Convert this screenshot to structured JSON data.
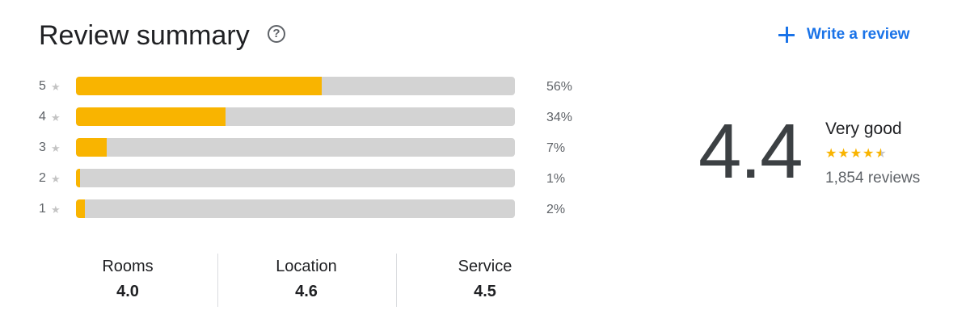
{
  "header": {
    "title": "Review summary",
    "help_icon": "help-icon",
    "help_glyph": "?",
    "write_review_label": "Write a review",
    "write_review_icon": "plus-icon"
  },
  "distribution": [
    {
      "stars": "5",
      "percent_label": "56%",
      "fraction": 0.56
    },
    {
      "stars": "4",
      "percent_label": "34%",
      "fraction": 0.34
    },
    {
      "stars": "3",
      "percent_label": "7%",
      "fraction": 0.07
    },
    {
      "stars": "2",
      "percent_label": "1%",
      "fraction": 0.01
    },
    {
      "stars": "1",
      "percent_label": "2%",
      "fraction": 0.02
    }
  ],
  "overall": {
    "score": "4.4",
    "verdict": "Very good",
    "star_rating": 4.4,
    "review_count": "1,854 reviews"
  },
  "aspects": [
    {
      "name": "Rooms",
      "value": "4.0"
    },
    {
      "name": "Location",
      "value": "4.6"
    },
    {
      "name": "Service",
      "value": "4.5"
    }
  ],
  "colors": {
    "accent": "#1a73e8",
    "bar_fill": "#f9b400",
    "bar_track": "#d3d3d3",
    "star_muted": "#c4c4c4"
  }
}
